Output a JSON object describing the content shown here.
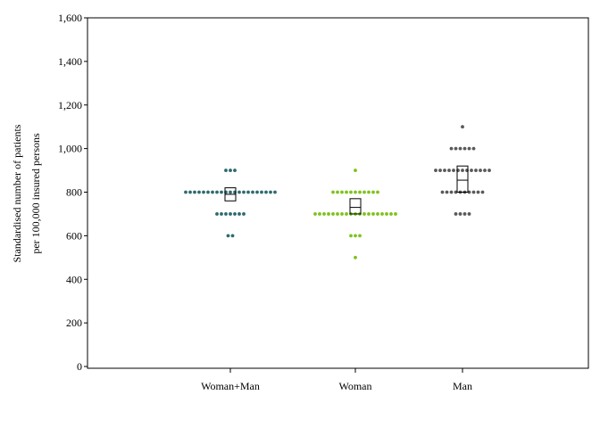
{
  "chart_data": {
    "type": "scatter",
    "subtype": "dot-plot-with-box",
    "title": "",
    "xlabel": "",
    "ylabel": [
      "Standardised number of patients",
      "per 100,000 insured persons"
    ],
    "ylim": [
      0,
      1600
    ],
    "yticks": [
      0,
      200,
      400,
      600,
      800,
      1000,
      1200,
      1400,
      1600
    ],
    "ytick_labels": [
      "0",
      "200",
      "400",
      "600",
      "800",
      "1,000",
      "1,200",
      "1,400",
      "1,600"
    ],
    "grid": false,
    "legend": "none",
    "categories": [
      "Woman+Man",
      "Woman",
      "Man"
    ],
    "series": [
      {
        "category": "Woman+Man",
        "color": "#2e6b6e",
        "points": [
          {
            "y": 900,
            "count": 3
          },
          {
            "y": 800,
            "count": 21
          },
          {
            "y": 700,
            "count": 7
          },
          {
            "y": 600,
            "count": 2
          }
        ],
        "box": {
          "low": 760,
          "median": 790,
          "high": 820
        }
      },
      {
        "category": "Woman",
        "color": "#7ec21e",
        "points": [
          {
            "y": 900,
            "count": 1
          },
          {
            "y": 800,
            "count": 11
          },
          {
            "y": 700,
            "count": 19
          },
          {
            "y": 600,
            "count": 3
          },
          {
            "y": 500,
            "count": 1
          }
        ],
        "box": {
          "low": 700,
          "median": 730,
          "high": 770
        }
      },
      {
        "category": "Man",
        "color": "#5a5a5a",
        "points": [
          {
            "y": 1100,
            "count": 1
          },
          {
            "y": 1000,
            "count": 6
          },
          {
            "y": 900,
            "count": 13
          },
          {
            "y": 800,
            "count": 10
          },
          {
            "y": 700,
            "count": 4
          }
        ],
        "box": {
          "low": 800,
          "median": 855,
          "high": 920
        }
      }
    ]
  }
}
